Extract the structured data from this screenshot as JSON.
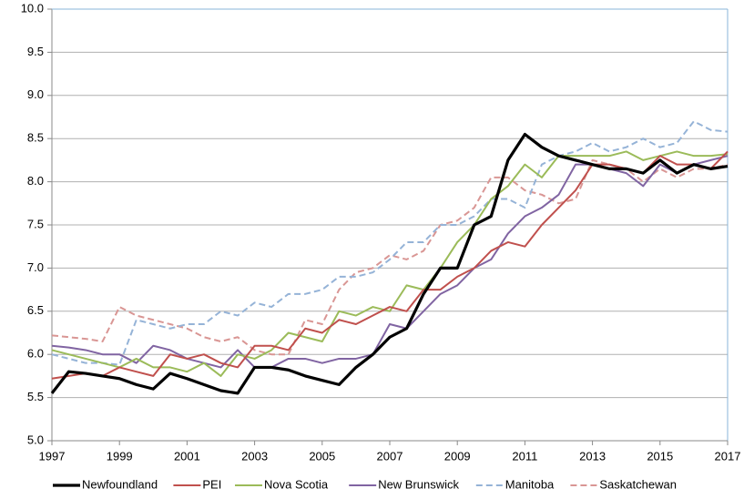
{
  "chart_data": {
    "type": "line",
    "x": [
      1997,
      1997.5,
      1998,
      1998.5,
      1999,
      1999.5,
      2000,
      2000.5,
      2001,
      2001.5,
      2002,
      2002.5,
      2003,
      2003.5,
      2004,
      2004.5,
      2005,
      2005.5,
      2006,
      2006.5,
      2007,
      2007.5,
      2008,
      2008.5,
      2009,
      2009.5,
      2010,
      2010.5,
      2011,
      2011.5,
      2012,
      2012.5,
      2013,
      2013.5,
      2014,
      2014.5,
      2015,
      2015.5,
      2016,
      2016.5,
      2017
    ],
    "series": [
      {
        "name": "Newfoundland",
        "color": "#000000",
        "dashed": false,
        "line_width": 3.2,
        "values": [
          5.55,
          5.8,
          5.78,
          5.75,
          5.72,
          5.65,
          5.6,
          5.78,
          5.72,
          5.65,
          5.58,
          5.55,
          5.85,
          5.85,
          5.82,
          5.75,
          5.7,
          5.65,
          5.85,
          6.0,
          6.2,
          6.3,
          6.7,
          7.0,
          7.0,
          7.5,
          7.6,
          8.25,
          8.55,
          8.4,
          8.3,
          8.25,
          8.2,
          8.15,
          8.15,
          8.1,
          8.25,
          8.1,
          8.2,
          8.15,
          8.18
        ]
      },
      {
        "name": "PEI",
        "color": "#c0504d",
        "dashed": false,
        "line_width": 2,
        "values": [
          5.72,
          5.75,
          5.78,
          5.75,
          5.85,
          5.8,
          5.75,
          6.0,
          5.95,
          6.0,
          5.9,
          5.85,
          6.1,
          6.1,
          6.05,
          6.3,
          6.25,
          6.4,
          6.35,
          6.45,
          6.55,
          6.5,
          6.75,
          6.75,
          6.9,
          7.0,
          7.2,
          7.3,
          7.25,
          7.5,
          7.7,
          7.9,
          8.2,
          8.2,
          8.15,
          8.1,
          8.3,
          8.2,
          8.2,
          8.15,
          8.35
        ]
      },
      {
        "name": "Nova Scotia",
        "color": "#9bbb59",
        "dashed": false,
        "line_width": 2,
        "values": [
          6.05,
          6.0,
          5.95,
          5.9,
          5.85,
          5.95,
          5.85,
          5.85,
          5.8,
          5.9,
          5.75,
          6.0,
          5.95,
          6.05,
          6.25,
          6.2,
          6.15,
          6.5,
          6.45,
          6.55,
          6.5,
          6.8,
          6.75,
          7.0,
          7.3,
          7.5,
          7.8,
          7.95,
          8.2,
          8.05,
          8.3,
          8.3,
          8.3,
          8.3,
          8.35,
          8.25,
          8.3,
          8.35,
          8.3,
          8.3,
          8.32
        ]
      },
      {
        "name": "New Brunswick",
        "color": "#8064a2",
        "dashed": false,
        "line_width": 2,
        "values": [
          6.1,
          6.08,
          6.05,
          6.0,
          6.0,
          5.9,
          6.1,
          6.05,
          5.95,
          5.9,
          5.85,
          6.05,
          5.85,
          5.85,
          5.95,
          5.95,
          5.9,
          5.95,
          5.95,
          6.0,
          6.35,
          6.3,
          6.5,
          6.7,
          6.8,
          7.0,
          7.1,
          7.4,
          7.6,
          7.7,
          7.85,
          8.2,
          8.2,
          8.15,
          8.1,
          7.95,
          8.2,
          8.1,
          8.2,
          8.25,
          8.3
        ]
      },
      {
        "name": "Manitoba",
        "color": "#95b3d7",
        "dashed": true,
        "line_width": 2,
        "values": [
          6.0,
          5.95,
          5.9,
          5.9,
          5.88,
          6.4,
          6.35,
          6.3,
          6.35,
          6.35,
          6.5,
          6.45,
          6.6,
          6.55,
          6.7,
          6.7,
          6.75,
          6.9,
          6.9,
          6.95,
          7.1,
          7.3,
          7.3,
          7.5,
          7.5,
          7.6,
          7.8,
          7.8,
          7.7,
          8.2,
          8.3,
          8.35,
          8.45,
          8.35,
          8.4,
          8.5,
          8.4,
          8.45,
          8.7,
          8.6,
          8.58
        ]
      },
      {
        "name": "Saskatchewan",
        "color": "#d99694",
        "dashed": true,
        "line_width": 2,
        "values": [
          6.22,
          6.2,
          6.18,
          6.15,
          6.55,
          6.45,
          6.4,
          6.35,
          6.3,
          6.2,
          6.15,
          6.2,
          6.05,
          6.0,
          6.0,
          6.4,
          6.35,
          6.75,
          6.95,
          7.0,
          7.15,
          7.1,
          7.2,
          7.5,
          7.55,
          7.7,
          8.05,
          8.05,
          7.9,
          7.85,
          7.75,
          7.8,
          8.25,
          8.2,
          8.15,
          8.0,
          8.15,
          8.05,
          8.15,
          8.15,
          8.2
        ]
      }
    ],
    "xlim": [
      1997,
      2017
    ],
    "xticks": [
      1997,
      1999,
      2001,
      2003,
      2005,
      2007,
      2009,
      2011,
      2013,
      2015,
      2017
    ],
    "ylim": [
      5,
      10
    ],
    "yticks": [
      {
        "value": 5,
        "label": "5.0"
      },
      {
        "value": 5.5,
        "label": "5.5"
      },
      {
        "value": 6,
        "label": "6.0"
      },
      {
        "value": 6.5,
        "label": "6.5"
      },
      {
        "value": 7,
        "label": "7.0"
      },
      {
        "value": 7.5,
        "label": "7.5"
      },
      {
        "value": 8,
        "label": "8.0"
      },
      {
        "value": 8.5,
        "label": "8.5"
      },
      {
        "value": 9,
        "label": "9.0"
      },
      {
        "value": 9.5,
        "label": "9.5"
      },
      {
        "value": 10,
        "label": "10.0"
      }
    ],
    "grid": true,
    "legend": "bottom"
  }
}
